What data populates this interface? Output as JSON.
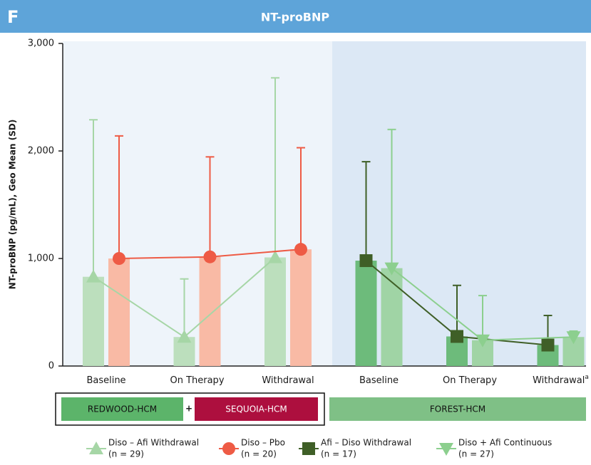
{
  "chart_data": {
    "type": "bar-line",
    "panel_letter": "F",
    "title": "NT-proBNP",
    "y_label": "NT-proBNP (pg/mL), Geo Mean (SD)",
    "categories": [
      "Baseline",
      "On Therapy",
      "Withdrawal",
      "Baseline",
      "On Therapy",
      "Withdrawal"
    ],
    "category_marks": [
      null,
      null,
      null,
      null,
      null,
      "a"
    ],
    "ylim": [
      0,
      3000
    ],
    "yticks": [
      0,
      {
        "value": 1000,
        "label": "1,000"
      },
      {
        "value": 2000,
        "label": "2,000"
      },
      {
        "value": 3000,
        "label": "3,000"
      }
    ],
    "grid": false,
    "groups": [
      {
        "label": "REDWOOD-HCM",
        "color": "#5cb46a"
      },
      {
        "label": "SEQUOIA-HCM",
        "color": "#ad0f3e"
      },
      {
        "label": "FOREST-HCM",
        "color": "#7fc086"
      }
    ],
    "group_joiner": "+",
    "series": [
      {
        "name": "Diso – Afi Withdrawal",
        "n": "(n = 29)",
        "color": "#a6d6a6",
        "bar_color": "#bcdfbd",
        "marker": "triangle",
        "values": [
          830,
          270,
          1010,
          null,
          null,
          null
        ],
        "errors": [
          1460,
          540,
          1670,
          null,
          null,
          null
        ]
      },
      {
        "name": "Diso – Pbo",
        "n": "(n = 20)",
        "color": "#ee5b45",
        "bar_color": "#f9baa5",
        "marker": "circle",
        "values": [
          1000,
          1015,
          1085,
          null,
          null,
          null
        ],
        "errors": [
          1140,
          930,
          945,
          null,
          null,
          null
        ]
      },
      {
        "name": "Afi – Diso Withdrawal",
        "n": "(n = 17)",
        "color": "#3f5f27",
        "bar_color": "#6dbb7b",
        "marker": "square",
        "values": [
          null,
          null,
          null,
          980,
          275,
          195
        ],
        "errors": [
          null,
          null,
          null,
          920,
          475,
          275
        ]
      },
      {
        "name": "Diso + Afi Continuous",
        "n": "(n = 27)",
        "color": "#8ccf8e",
        "bar_color": "#a0d4a5",
        "marker": "triangle-down",
        "values": [
          null,
          null,
          null,
          910,
          240,
          270
        ],
        "errors": [
          null,
          null,
          null,
          1290,
          415,
          55
        ]
      }
    ]
  }
}
